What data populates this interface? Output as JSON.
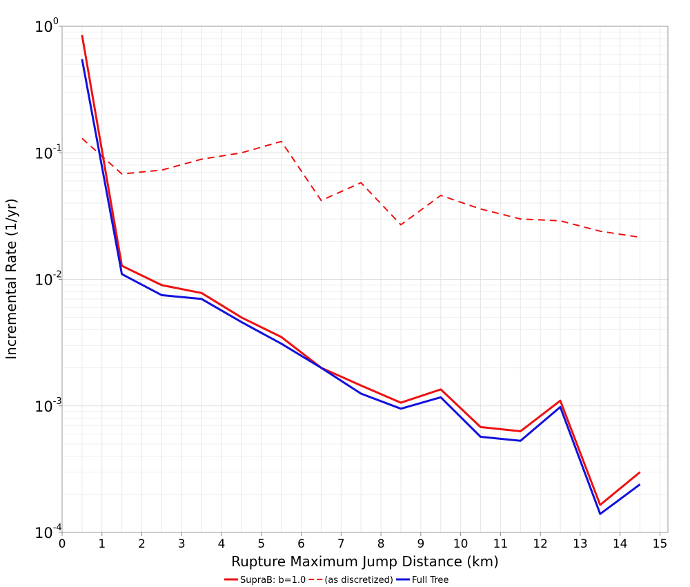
{
  "chart_data": {
    "type": "line",
    "xlabel": "Rupture Maximum Jump Distance (km)",
    "ylabel": "Incremental Rate (1/yr)",
    "xlim": [
      0,
      15.2
    ],
    "ylim": [
      0.0001,
      1
    ],
    "yscale": "log",
    "x_ticks": [
      0,
      1,
      2,
      3,
      4,
      5,
      6,
      7,
      8,
      9,
      10,
      11,
      12,
      13,
      14,
      15
    ],
    "y_ticks": [
      {
        "base": "10",
        "exp": "0",
        "value": 1
      },
      {
        "base": "10",
        "exp": "-1",
        "value": 0.1
      },
      {
        "base": "10",
        "exp": "-2",
        "value": 0.01
      },
      {
        "base": "10",
        "exp": "-3",
        "value": 0.001
      },
      {
        "base": "10",
        "exp": "-4",
        "value": 0.0001
      }
    ],
    "grid": true,
    "legend_position": "bottom",
    "x": [
      0.5,
      1.5,
      2.5,
      3.5,
      4.5,
      5.5,
      6.5,
      7.5,
      8.5,
      9.5,
      10.5,
      11.5,
      12.5,
      13.5,
      14.5
    ],
    "series": [
      {
        "name": "SupraB: b=1.0",
        "color": "#ee1111",
        "style": "solid",
        "values": [
          0.85,
          0.0128,
          0.009,
          0.0078,
          0.005,
          0.0035,
          0.002,
          0.00145,
          0.00106,
          0.00135,
          0.00068,
          0.00063,
          0.0011,
          0.000165,
          0.0003
        ]
      },
      {
        "name": "(as discretized)",
        "color": "#ee1111",
        "style": "dashed",
        "values": [
          0.13,
          0.068,
          0.073,
          0.089,
          0.1,
          0.123,
          0.042,
          0.058,
          0.027,
          0.046,
          0.036,
          0.03,
          0.029,
          0.024,
          0.0215
        ]
      },
      {
        "name": "Full Tree",
        "color": "#1111dd",
        "style": "solid",
        "values": [
          0.55,
          0.011,
          0.0075,
          0.007,
          0.0046,
          0.0031,
          0.002,
          0.00125,
          0.00095,
          0.00117,
          0.00057,
          0.00053,
          0.00098,
          0.00014,
          0.00024
        ]
      }
    ]
  }
}
